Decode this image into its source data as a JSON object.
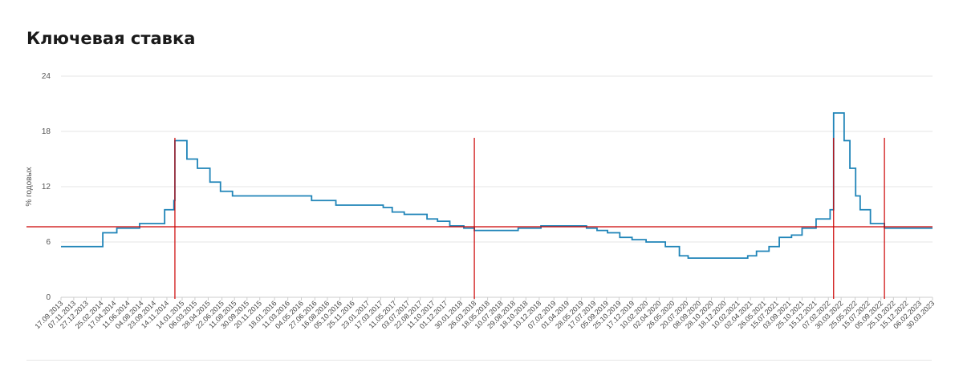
{
  "chart_data": {
    "type": "line",
    "title": "Ключевая ставка",
    "ylabel": "% годовых",
    "xlabel": "",
    "ylim": [
      0,
      24
    ],
    "yticks": [
      0,
      6,
      12,
      18,
      24
    ],
    "grid": true,
    "colors": {
      "series": "#1f84b8",
      "reference": "#cc0000",
      "grid": "#e6e6e6",
      "axis": "#cccccc"
    },
    "x_tick_labels": [
      "17.09.2013",
      "07.11.2013",
      "27.12.2013",
      "25.02.2014",
      "17.04.2014",
      "11.06.2014",
      "04.08.2014",
      "23.09.2014",
      "14.11.2014",
      "14.01.2015",
      "06.03.2015",
      "28.04.2015",
      "22.06.2015",
      "11.08.2015",
      "30.09.2015",
      "20.11.2015",
      "18.01.2016",
      "11.03.2016",
      "04.05.2016",
      "27.06.2016",
      "16.08.2016",
      "05.10.2016",
      "25.11.2016",
      "23.01.2017",
      "17.03.2017",
      "11.05.2017",
      "03.07.2017",
      "22.08.2017",
      "11.10.2017",
      "01.12.2017",
      "30.01.2018",
      "26.03.2018",
      "18.05.2018",
      "10.07.2018",
      "29.08.2018",
      "18.10.2018",
      "10.12.2018",
      "07.02.2019",
      "01.04.2019",
      "28.05.2019",
      "17.07.2019",
      "05.09.2019",
      "25.10.2019",
      "17.12.2019",
      "10.02.2020",
      "02.04.2020",
      "26.05.2020",
      "20.07.2020",
      "08.09.2020",
      "28.10.2020",
      "18.12.2020",
      "10.02.2021",
      "02.04.2021",
      "26.05.2021",
      "15.07.2021",
      "03.09.2021",
      "25.10.2021",
      "15.12.2021",
      "07.02.2022",
      "30.03.2022",
      "25.05.2022",
      "15.07.2022",
      "05.09.2022",
      "25.10.2022",
      "15.12.2022",
      "06.02.2023",
      "30.03.2023"
    ],
    "series": [
      {
        "steps": [
          [
            "17.09.2013",
            5.5
          ],
          [
            "03.03.2014",
            7.0
          ],
          [
            "28.04.2014",
            7.5
          ],
          [
            "28.07.2014",
            8.0
          ],
          [
            "05.11.2014",
            9.5
          ],
          [
            "12.12.2014",
            10.5
          ],
          [
            "16.12.2014",
            17.0
          ],
          [
            "02.02.2015",
            15.0
          ],
          [
            "16.03.2015",
            14.0
          ],
          [
            "05.05.2015",
            12.5
          ],
          [
            "16.06.2015",
            11.5
          ],
          [
            "03.08.2015",
            11.0
          ],
          [
            "14.06.2016",
            10.5
          ],
          [
            "19.09.2016",
            10.0
          ],
          [
            "27.03.2017",
            9.75
          ],
          [
            "02.05.2017",
            9.25
          ],
          [
            "19.06.2017",
            9.0
          ],
          [
            "18.09.2017",
            8.5
          ],
          [
            "30.10.2017",
            8.25
          ],
          [
            "18.12.2017",
            7.75
          ],
          [
            "12.02.2018",
            7.5
          ],
          [
            "26.03.2018",
            7.25
          ],
          [
            "17.09.2018",
            7.5
          ],
          [
            "17.12.2018",
            7.75
          ],
          [
            "17.06.2019",
            7.5
          ],
          [
            "29.07.2019",
            7.25
          ],
          [
            "09.09.2019",
            7.0
          ],
          [
            "28.10.2019",
            6.5
          ],
          [
            "16.12.2019",
            6.25
          ],
          [
            "10.02.2020",
            6.0
          ],
          [
            "27.04.2020",
            5.5
          ],
          [
            "22.06.2020",
            4.5
          ],
          [
            "27.07.2020",
            4.25
          ],
          [
            "22.03.2021",
            4.5
          ],
          [
            "26.04.2021",
            5.0
          ],
          [
            "15.06.2021",
            5.5
          ],
          [
            "26.07.2021",
            6.5
          ],
          [
            "13.09.2021",
            6.75
          ],
          [
            "25.10.2021",
            7.5
          ],
          [
            "20.12.2021",
            8.5
          ],
          [
            "14.02.2022",
            9.5
          ],
          [
            "28.02.2022",
            20.0
          ],
          [
            "11.04.2022",
            17.0
          ],
          [
            "04.05.2022",
            14.0
          ],
          [
            "27.05.2022",
            11.0
          ],
          [
            "14.06.2022",
            9.5
          ],
          [
            "25.07.2022",
            8.0
          ],
          [
            "19.09.2022",
            7.5
          ],
          [
            "30.03.2023",
            7.5
          ]
        ]
      }
    ],
    "reference_lines": {
      "horizontal": [
        7.65
      ],
      "vertical_dates": [
        "16.12.2014",
        "26.03.2018",
        "28.02.2022",
        "19.09.2022"
      ]
    }
  }
}
